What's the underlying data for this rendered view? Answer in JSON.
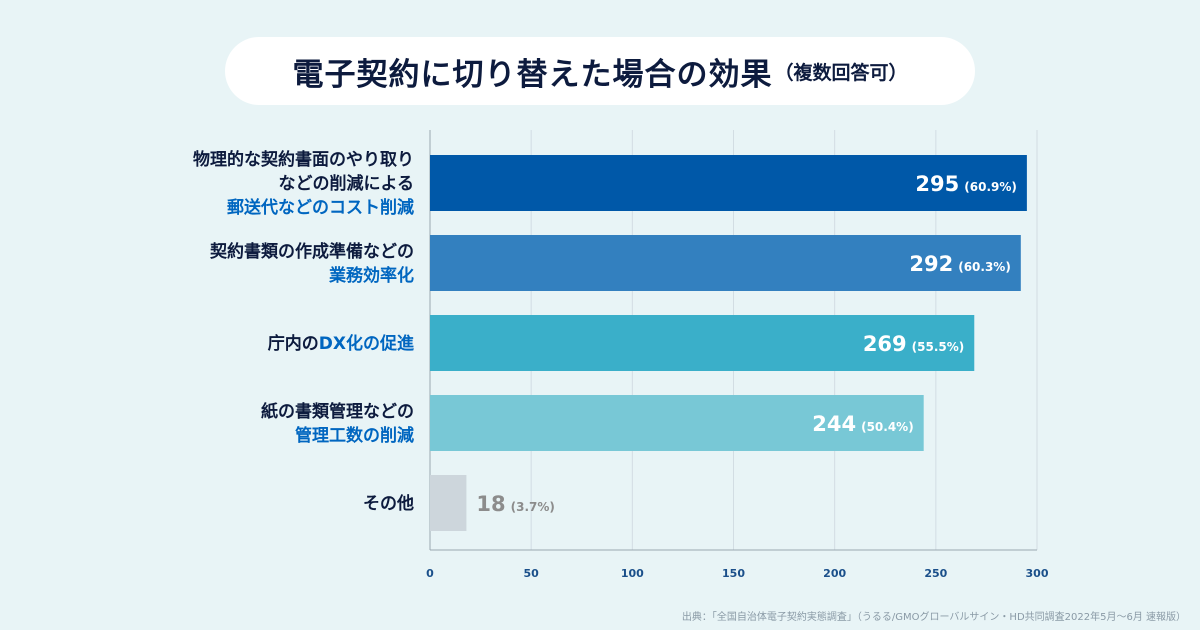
{
  "title": {
    "main": "電子契約に切り替えた場合の効果",
    "sub": "（複数回答可）"
  },
  "source": "出典：「全国自治体電子契約実態調査」（うるる/GMOグローバルサイン・HD共同調査2022年5月〜6月 速報版）",
  "chart_data": {
    "type": "bar",
    "orientation": "horizontal",
    "categories": [
      [
        "物理的な契約書面のやり取り",
        "などの削減による",
        "郵送代などのコスト削減"
      ],
      [
        "契約書類の作成準備などの",
        "業務効率化"
      ],
      [
        "庁内のDX化の促進"
      ],
      [
        "紙の書類管理などの",
        "管理工数の削減"
      ],
      [
        "その他"
      ]
    ],
    "category_text": [
      [
        {
          "t": "物理的な契約書面のやり取り",
          "hl": false
        },
        {
          "t": "などの削減による",
          "hl": false
        },
        {
          "t": "郵送代などのコスト削減",
          "hl": true
        }
      ],
      [
        {
          "t": "契約書類の作成準備などの",
          "hl": false
        },
        {
          "t": "業務効率化",
          "hl": true
        }
      ],
      [
        [
          {
            "t": "庁内の",
            "hl": false
          },
          {
            "t": "DX化の促進",
            "hl": true
          }
        ]
      ],
      [
        {
          "t": "紙の書類管理などの",
          "hl": false
        },
        {
          "t": "管理工数の削減",
          "hl": true
        }
      ],
      [
        {
          "t": "その他",
          "hl": false
        }
      ]
    ],
    "values": [
      295,
      292,
      269,
      244,
      18
    ],
    "value_labels": [
      "295",
      "292",
      "269",
      "244",
      "18"
    ],
    "percent_labels": [
      "(60.9%)",
      "(60.3%)",
      "(55.5%)",
      "(50.4%)",
      "(3.7%)"
    ],
    "colors": [
      "#0058a8",
      "#3380bf",
      "#3aafc9",
      "#78c8d6",
      "#cdd6dc"
    ],
    "xlim": [
      0,
      300
    ],
    "xticks": [
      0,
      50,
      100,
      150,
      200,
      250,
      300
    ],
    "grid": true
  },
  "colors": {
    "highlight_text": "#0066c0",
    "dark_text": "#0d1b3e",
    "tick_text": "#1a4f8a",
    "other_value_text": "#8c8c8c"
  }
}
